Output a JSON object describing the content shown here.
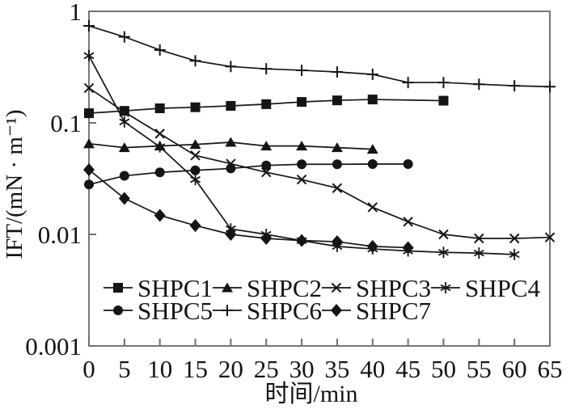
{
  "colors": {
    "line": "#151515",
    "frame": "#777777",
    "tick": "#6e6e6e",
    "text": "#141414",
    "background": "#ffffff"
  },
  "chart_data": {
    "type": "line",
    "title": "",
    "xlabel": "时间/min",
    "ylabel": "IFT/(mN · m⁻¹)",
    "y_scale": "log",
    "grid": false,
    "legend_position": "inside-bottom",
    "xlim": [
      0,
      65
    ],
    "ylim": [
      0.001,
      1
    ],
    "x_ticks": [
      0,
      5,
      10,
      15,
      20,
      25,
      30,
      35,
      40,
      45,
      50,
      55,
      60,
      65
    ],
    "y_ticks": [
      {
        "value": 1,
        "label": "1"
      },
      {
        "value": 0.1,
        "label": "0.1"
      },
      {
        "value": 0.01,
        "label": "0.01"
      },
      {
        "value": 0.001,
        "label": "0.001"
      }
    ],
    "series": [
      {
        "name": "SHPC1",
        "marker": "square",
        "x": [
          0,
          5,
          10,
          15,
          20,
          25,
          30,
          35,
          40,
          50
        ],
        "y": [
          0.122,
          0.128,
          0.135,
          0.138,
          0.142,
          0.147,
          0.154,
          0.159,
          0.162,
          0.158
        ]
      },
      {
        "name": "SHPC2",
        "marker": "triangle",
        "x": [
          0,
          5,
          10,
          15,
          20,
          25,
          30,
          35,
          40
        ],
        "y": [
          0.065,
          0.06,
          0.062,
          0.064,
          0.067,
          0.062,
          0.062,
          0.06,
          0.058
        ]
      },
      {
        "name": "SHPC3",
        "marker": "x",
        "x": [
          0,
          5,
          10,
          15,
          20,
          25,
          30,
          35,
          40,
          45,
          50,
          55,
          60,
          65
        ],
        "y": [
          0.205,
          0.125,
          0.08,
          0.051,
          0.043,
          0.036,
          0.031,
          0.026,
          0.0175,
          0.013,
          0.01,
          0.0092,
          0.0092,
          0.0094
        ]
      },
      {
        "name": "SHPC4",
        "marker": "asterisk",
        "x": [
          0,
          5,
          10,
          15,
          20,
          25,
          30,
          35,
          40,
          45,
          50,
          55,
          60
        ],
        "y": [
          0.4,
          0.102,
          0.061,
          0.031,
          0.0112,
          0.01,
          0.0088,
          0.0078,
          0.0074,
          0.0071,
          0.0069,
          0.0068,
          0.0066
        ]
      },
      {
        "name": "SHPC5",
        "marker": "circle",
        "x": [
          0,
          5,
          10,
          15,
          20,
          25,
          30,
          35,
          40,
          45
        ],
        "y": [
          0.028,
          0.0335,
          0.036,
          0.0375,
          0.039,
          0.0415,
          0.0425,
          0.0425,
          0.0427,
          0.0427
        ]
      },
      {
        "name": "SHPC6",
        "marker": "plus",
        "x": [
          0,
          5,
          10,
          15,
          20,
          25,
          30,
          35,
          40,
          45,
          50,
          55,
          60,
          65
        ],
        "y": [
          0.74,
          0.59,
          0.45,
          0.36,
          0.32,
          0.305,
          0.296,
          0.286,
          0.272,
          0.23,
          0.23,
          0.222,
          0.215,
          0.211
        ]
      },
      {
        "name": "SHPC7",
        "marker": "diamond",
        "x": [
          0,
          5,
          10,
          15,
          20,
          25,
          30,
          35,
          40,
          45
        ],
        "y": [
          0.038,
          0.021,
          0.0148,
          0.012,
          0.01,
          0.0092,
          0.0088,
          0.0086,
          0.0078,
          0.0076
        ]
      }
    ]
  }
}
